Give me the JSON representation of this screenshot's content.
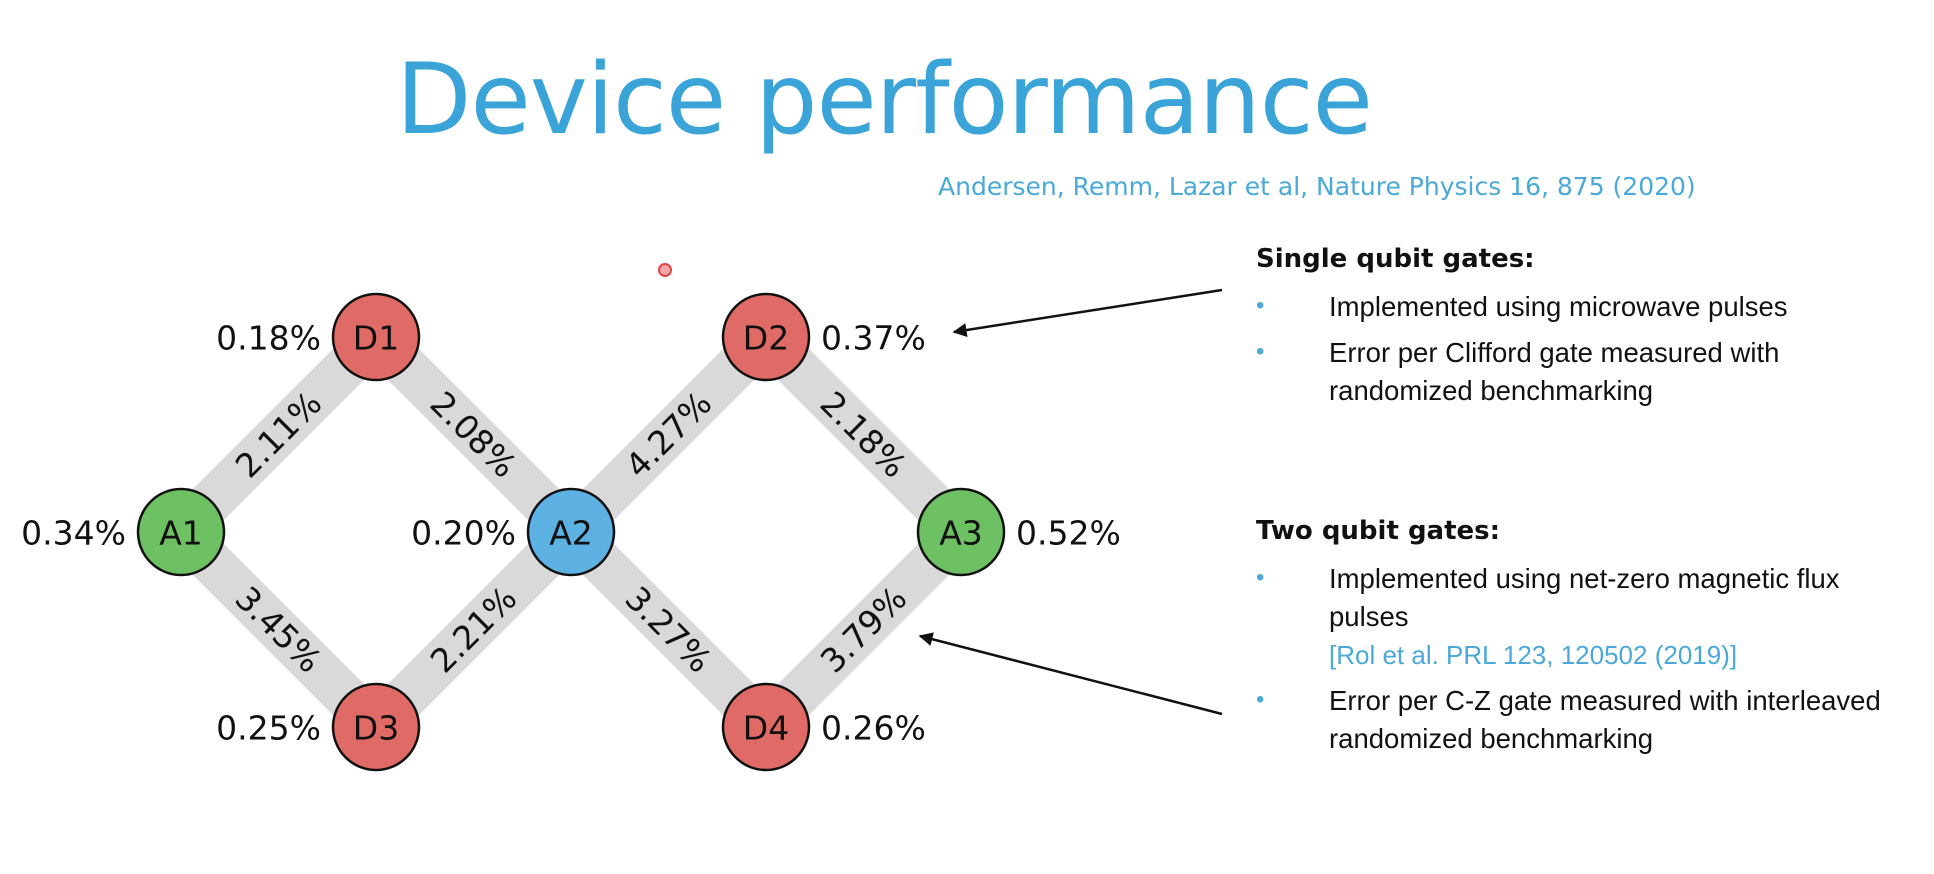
{
  "slide": {
    "title": "Device performance",
    "citation": "Andersen, Remm, Lazar et al, Nature Physics 16, 875 (2020)"
  },
  "qubits": [
    {
      "id": "D1",
      "color": "#e06b66",
      "error": "0.18%"
    },
    {
      "id": "D2",
      "color": "#e06b66",
      "error": "0.37%"
    },
    {
      "id": "A1",
      "color": "#6dc163",
      "error": "0.34%"
    },
    {
      "id": "A2",
      "color": "#5db1e3",
      "error": "0.20%"
    },
    {
      "id": "A3",
      "color": "#6dc163",
      "error": "0.52%"
    },
    {
      "id": "D3",
      "color": "#e06b66",
      "error": "0.25%"
    },
    {
      "id": "D4",
      "color": "#e06b66",
      "error": "0.26%"
    }
  ],
  "edges": [
    {
      "from": "A1",
      "to": "D1",
      "error": "2.11%"
    },
    {
      "from": "D1",
      "to": "A2",
      "error": "2.08%"
    },
    {
      "from": "A2",
      "to": "D2",
      "error": "4.27%"
    },
    {
      "from": "D2",
      "to": "A3",
      "error": "2.18%"
    },
    {
      "from": "A1",
      "to": "D3",
      "error": "3.45%"
    },
    {
      "from": "D3",
      "to": "A2",
      "error": "2.21%"
    },
    {
      "from": "A2",
      "to": "D4",
      "error": "3.27%"
    },
    {
      "from": "D4",
      "to": "A3",
      "error": "3.79%"
    }
  ],
  "single_qubit": {
    "heading": "Single qubit gates:",
    "items": [
      "Implemented using microwave pulses",
      "Error per Clifford gate measured with randomized benchmarking"
    ]
  },
  "two_qubit": {
    "heading": "Two qubit gates:",
    "items": [
      "Implemented using net-zero magnetic flux pulses",
      "Error per C-Z gate measured with interleaved randomized benchmarking"
    ],
    "reference": "[Rol et al. PRL 123, 120502 (2019)]"
  },
  "colors": {
    "title": "#3aa3d8",
    "edge": "#d9d9d9",
    "data_qubit": "#e06b66",
    "ancilla_qubit": "#6dc163",
    "center_ancilla": "#5db1e3"
  }
}
